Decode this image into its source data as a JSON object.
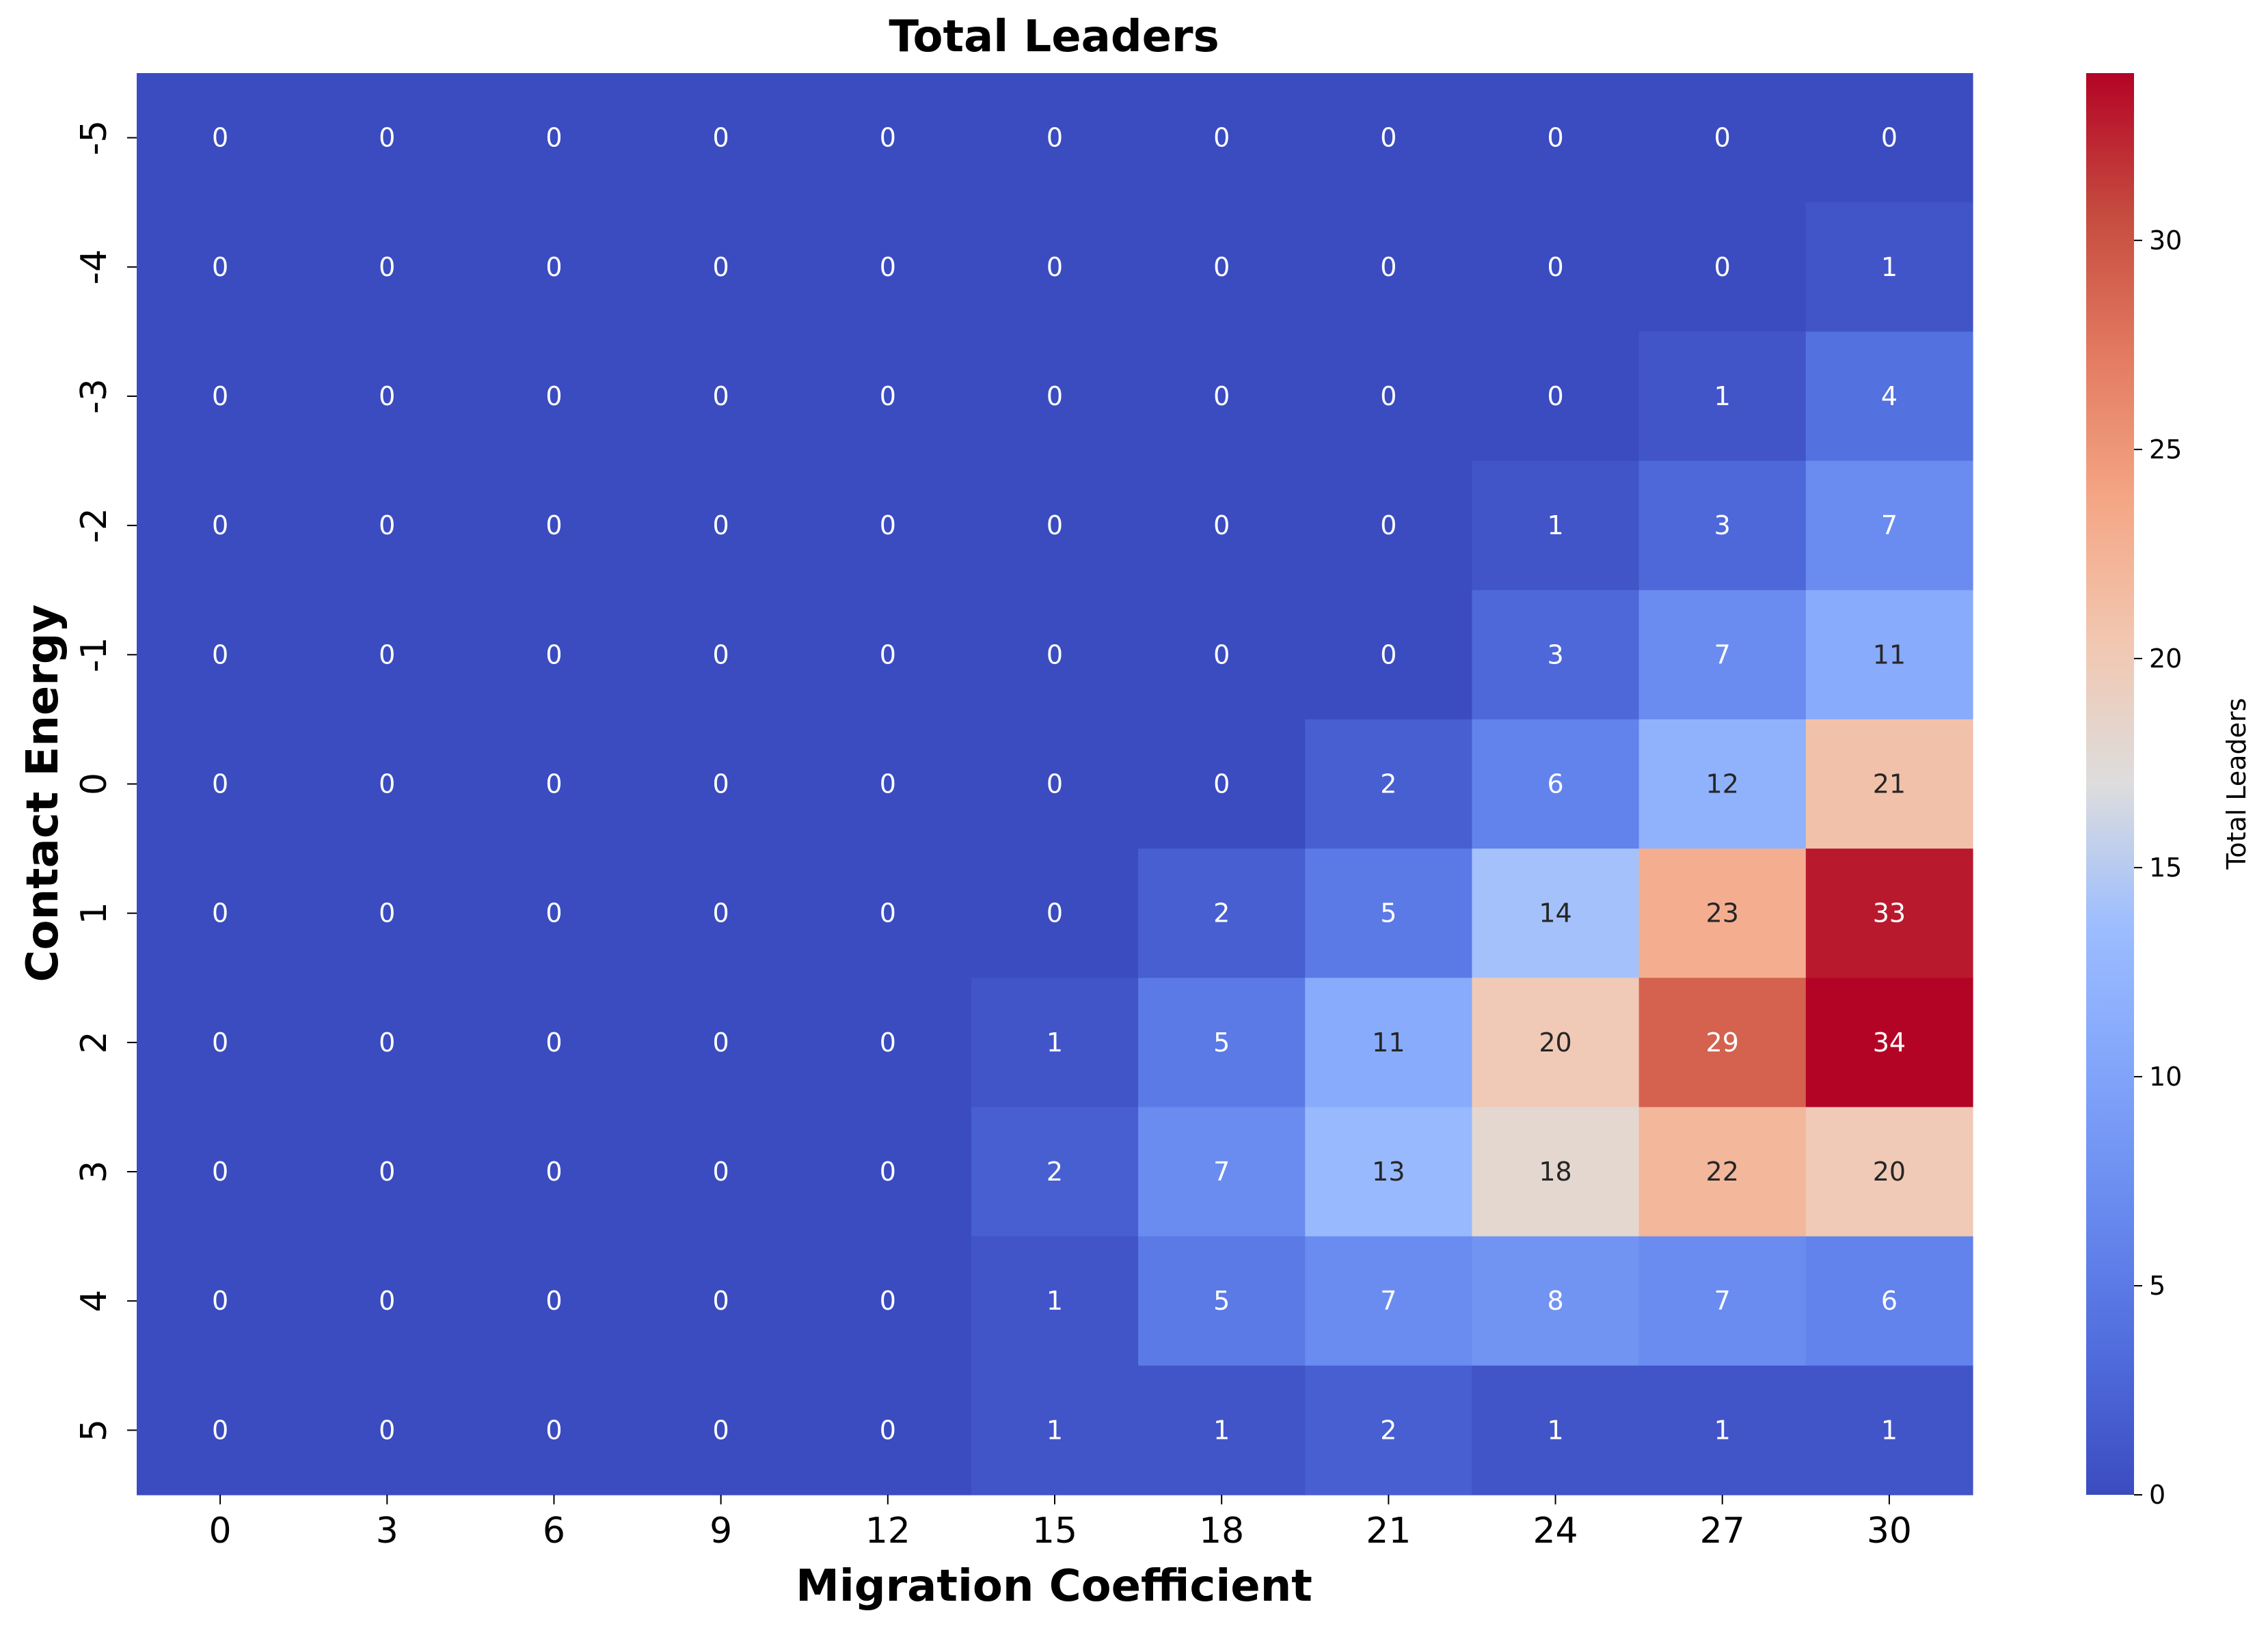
{
  "chart_data": {
    "type": "heatmap",
    "title": "Total Leaders",
    "xlabel": "Migration Coefficient",
    "ylabel": "Contact Energy",
    "x": [
      "0",
      "3",
      "6",
      "9",
      "12",
      "15",
      "18",
      "21",
      "24",
      "27",
      "30"
    ],
    "y": [
      "-5",
      "-4",
      "-3",
      "-2",
      "-1",
      "0",
      "1",
      "2",
      "3",
      "4",
      "5"
    ],
    "values": [
      [
        0,
        0,
        0,
        0,
        0,
        0,
        0,
        0,
        0,
        0,
        0
      ],
      [
        0,
        0,
        0,
        0,
        0,
        0,
        0,
        0,
        0,
        0,
        1
      ],
      [
        0,
        0,
        0,
        0,
        0,
        0,
        0,
        0,
        0,
        1,
        4
      ],
      [
        0,
        0,
        0,
        0,
        0,
        0,
        0,
        0,
        1,
        3,
        7
      ],
      [
        0,
        0,
        0,
        0,
        0,
        0,
        0,
        0,
        3,
        7,
        11
      ],
      [
        0,
        0,
        0,
        0,
        0,
        0,
        0,
        2,
        6,
        12,
        21
      ],
      [
        0,
        0,
        0,
        0,
        0,
        0,
        2,
        5,
        14,
        23,
        33
      ],
      [
        0,
        0,
        0,
        0,
        0,
        1,
        5,
        11,
        20,
        29,
        34
      ],
      [
        0,
        0,
        0,
        0,
        0,
        2,
        7,
        13,
        18,
        22,
        20
      ],
      [
        0,
        0,
        0,
        0,
        0,
        1,
        5,
        7,
        8,
        7,
        6
      ],
      [
        0,
        0,
        0,
        0,
        0,
        1,
        1,
        2,
        1,
        1,
        1
      ]
    ],
    "colorbar": {
      "label": "Total Leaders",
      "colormap": "coolwarm",
      "range": [
        0,
        34
      ],
      "ticks": [
        "0",
        "5",
        "10",
        "15",
        "20",
        "25",
        "30"
      ]
    },
    "grid": false,
    "legend": "colorbar-right"
  }
}
